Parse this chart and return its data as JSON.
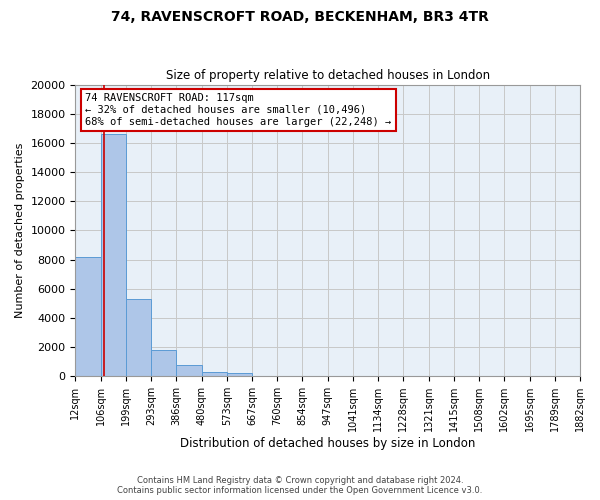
{
  "title": "74, RAVENSCROFT ROAD, BECKENHAM, BR3 4TR",
  "subtitle": "Size of property relative to detached houses in London",
  "xlabel": "Distribution of detached houses by size in London",
  "ylabel": "Number of detached properties",
  "bin_labels": [
    "12sqm",
    "106sqm",
    "199sqm",
    "293sqm",
    "386sqm",
    "480sqm",
    "573sqm",
    "667sqm",
    "760sqm",
    "854sqm",
    "947sqm",
    "1041sqm",
    "1134sqm",
    "1228sqm",
    "1321sqm",
    "1415sqm",
    "1508sqm",
    "1602sqm",
    "1695sqm",
    "1789sqm",
    "1882sqm"
  ],
  "bar_values": [
    8200,
    16600,
    5300,
    1800,
    750,
    280,
    230,
    0,
    0,
    0,
    0,
    0,
    0,
    0,
    0,
    0,
    0,
    0,
    0,
    0
  ],
  "bar_color": "#aec6e8",
  "bar_edge_color": "#5b9bd5",
  "property_line_x": 1.12,
  "property_sqm": 117,
  "annotation_text_line1": "74 RAVENSCROFT ROAD: 117sqm",
  "annotation_text_line2": "← 32% of detached houses are smaller (10,496)",
  "annotation_text_line3": "68% of semi-detached houses are larger (22,248) →",
  "annotation_box_color": "#ffffff",
  "annotation_box_edge_color": "#cc0000",
  "property_line_color": "#cc0000",
  "ylim": [
    0,
    20000
  ],
  "yticks": [
    0,
    2000,
    4000,
    6000,
    8000,
    10000,
    12000,
    14000,
    16000,
    18000,
    20000
  ],
  "grid_color": "#c8c8c8",
  "bg_color": "#e8f0f8",
  "footer_line1": "Contains HM Land Registry data © Crown copyright and database right 2024.",
  "footer_line2": "Contains public sector information licensed under the Open Government Licence v3.0."
}
